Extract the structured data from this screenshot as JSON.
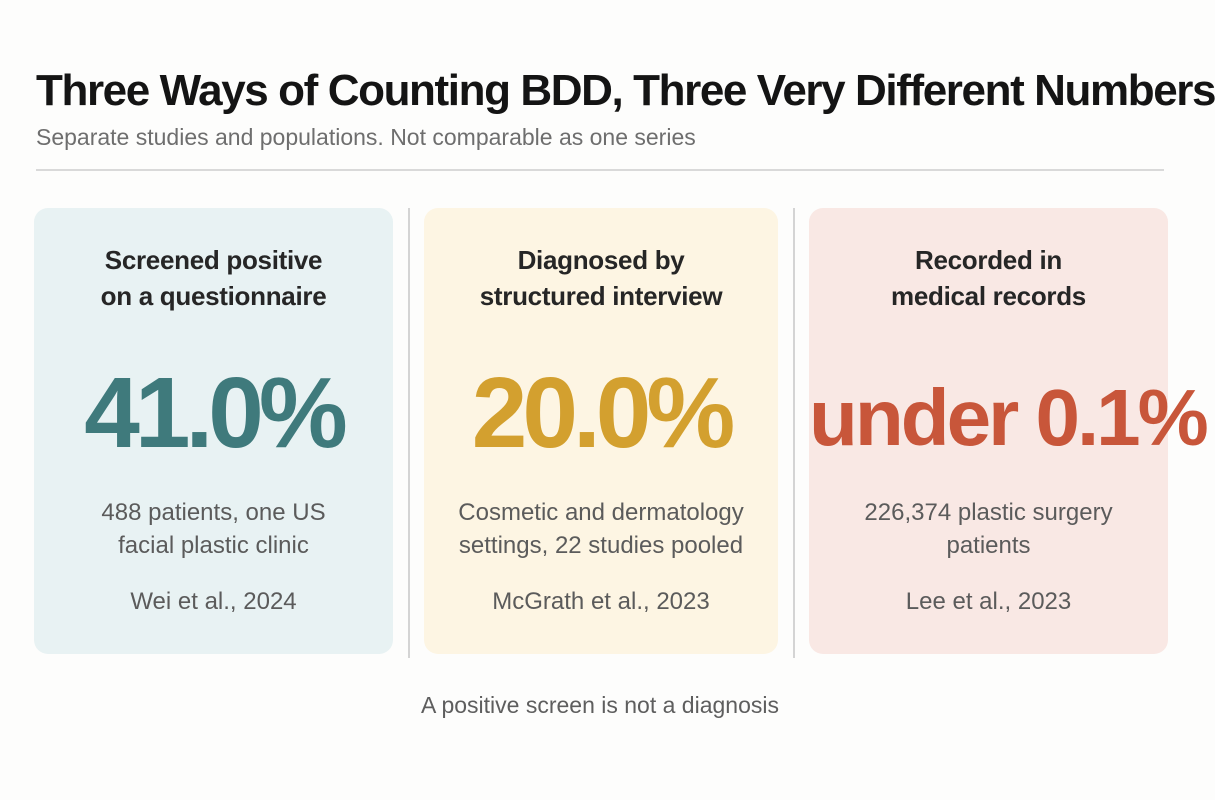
{
  "header": {
    "title": "Three Ways of Counting BDD, Three Very Different Numbers",
    "subtitle": "Separate studies and populations. Not comparable as one series"
  },
  "cards": [
    {
      "label": "Screened positive\non a questionnaire",
      "value": "41.0%",
      "description": "488 patients, one US\nfacial plastic clinic",
      "source": "Wei et al., 2024",
      "color": "#3f7a7c"
    },
    {
      "label": "Diagnosed by\nstructured interview",
      "value": "20.0%",
      "description": "Cosmetic and dermatology\nsettings, 22 studies pooled",
      "source": "McGrath et al., 2023",
      "color": "#d3a02f"
    },
    {
      "label": "Recorded in\nmedical records",
      "value": "under 0.1%",
      "description": "226,374 plastic surgery\npatients",
      "source": "Lee et al., 2023",
      "color": "#c8563a"
    }
  ],
  "footnote": "A positive screen is not a diagnosis"
}
